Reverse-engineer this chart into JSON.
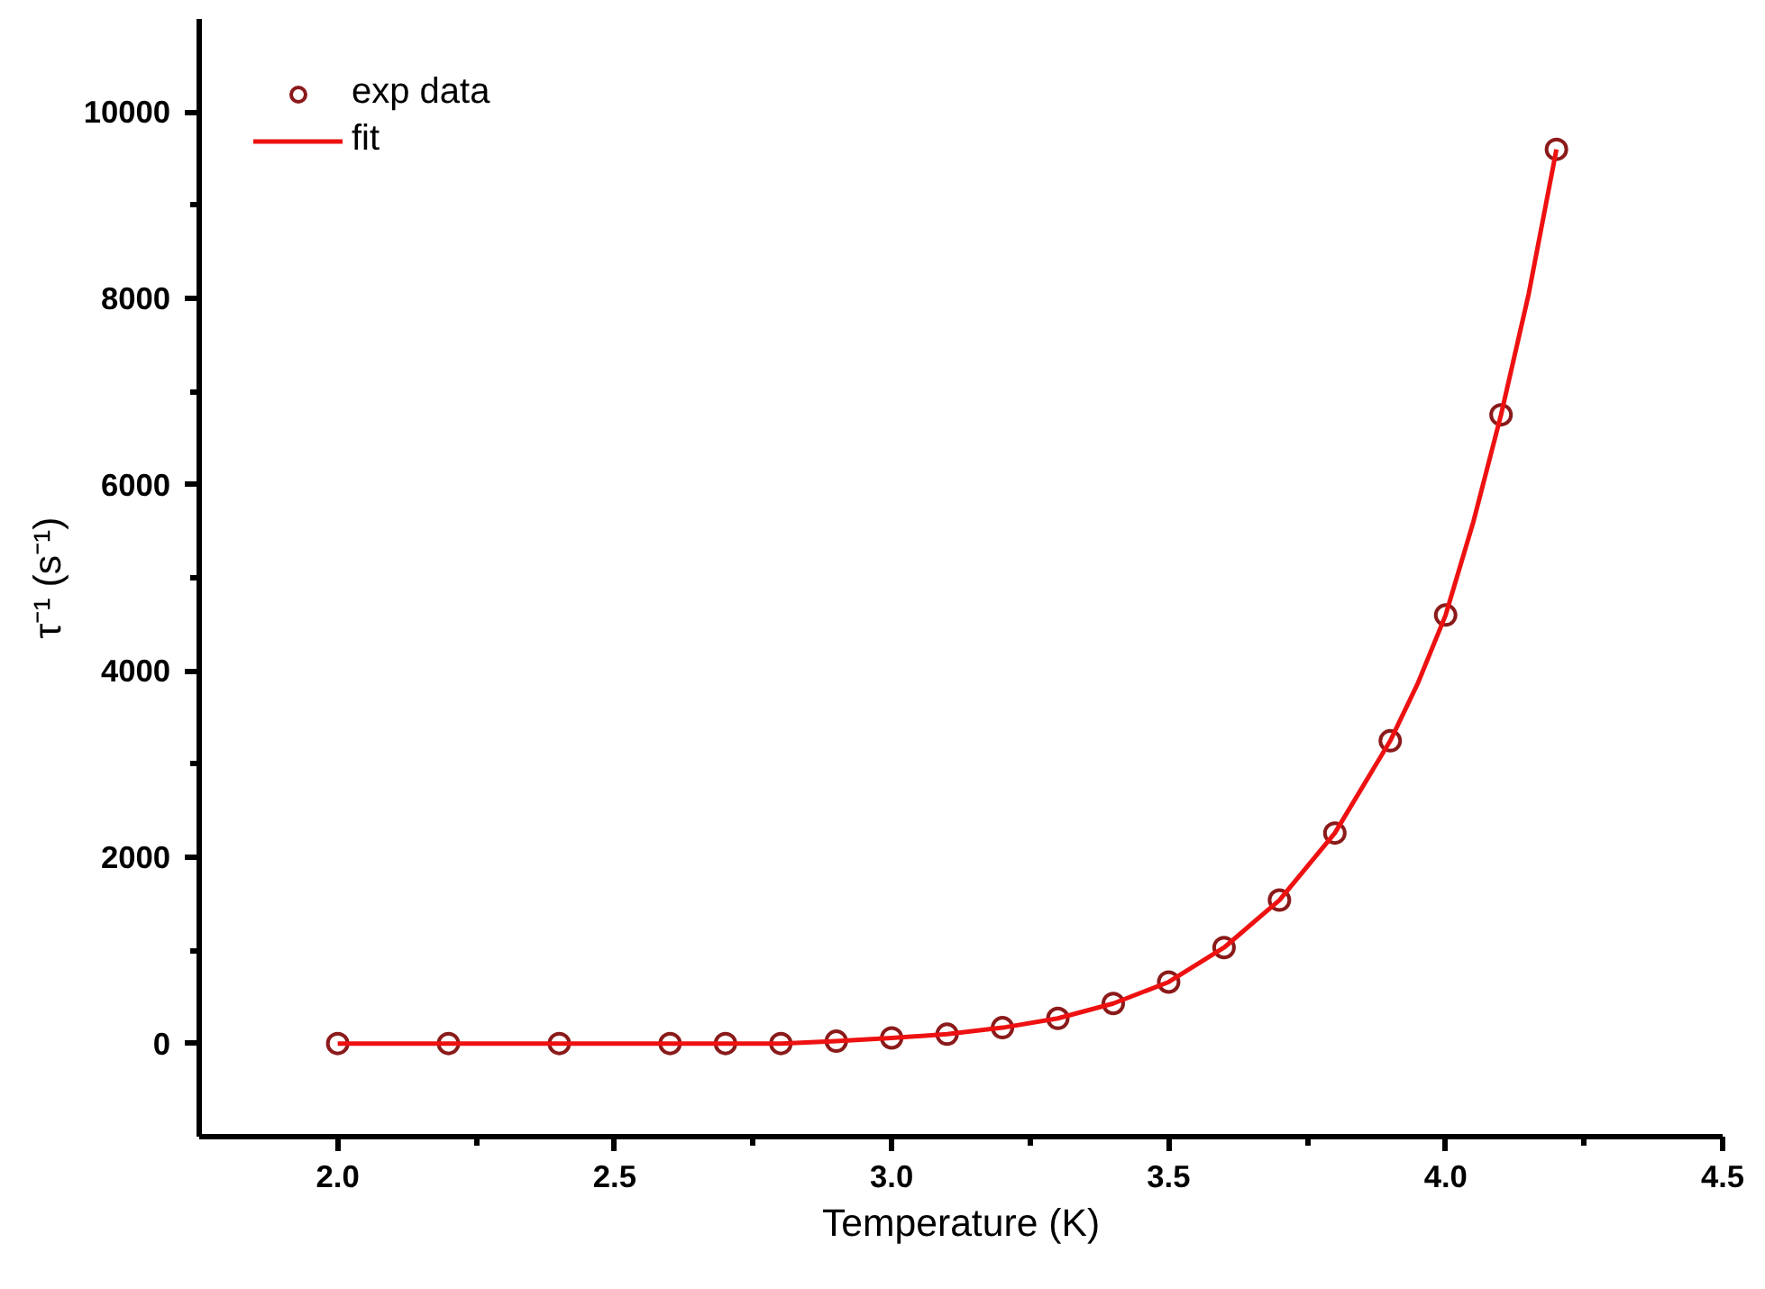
{
  "chart_data": {
    "type": "scatter",
    "xlabel": "Temperature (K)",
    "ylabel": "τ⁻¹ (s⁻¹)",
    "xlim": [
      1.75,
      4.5
    ],
    "ylim": [
      -1000,
      11000
    ],
    "xticks": [
      {
        "value": 2.0,
        "label": "2.0"
      },
      {
        "value": 2.5,
        "label": "2.5"
      },
      {
        "value": 3.0,
        "label": "3.0"
      },
      {
        "value": 3.5,
        "label": "3.5"
      },
      {
        "value": 4.0,
        "label": "4.0"
      },
      {
        "value": 4.5,
        "label": "4.5"
      }
    ],
    "yticks": [
      0,
      2000,
      4000,
      6000,
      8000,
      10000
    ],
    "legend": "top left",
    "grid": false,
    "series": [
      {
        "name": "exp data",
        "marker": "circle",
        "color": "#8b1a1a",
        "x": [
          2.0,
          2.2,
          2.4,
          2.6,
          2.7,
          2.8,
          2.9,
          3.0,
          3.1,
          3.2,
          3.3,
          3.4,
          3.5,
          3.6,
          3.7,
          3.8,
          3.9,
          4.0,
          4.1,
          4.2
        ],
        "values": [
          0,
          0,
          0,
          0,
          0,
          0,
          25,
          60,
          100,
          170,
          270,
          430,
          660,
          1030,
          1540,
          2260,
          3250,
          4600,
          6750,
          9600
        ]
      },
      {
        "name": "fit",
        "type": "line",
        "line_style": "solid",
        "color": "#ee1111",
        "x": [
          2.0,
          2.2,
          2.4,
          2.6,
          2.7,
          2.8,
          2.9,
          3.0,
          3.1,
          3.2,
          3.3,
          3.4,
          3.5,
          3.6,
          3.7,
          3.8,
          3.9,
          3.95,
          4.0,
          4.05,
          4.1,
          4.15,
          4.2
        ],
        "values": [
          0,
          0,
          0,
          0,
          0,
          0,
          25,
          60,
          100,
          170,
          270,
          430,
          660,
          1030,
          1540,
          2260,
          3250,
          3870,
          4600,
          5600,
          6750,
          8050,
          9600
        ]
      }
    ]
  }
}
